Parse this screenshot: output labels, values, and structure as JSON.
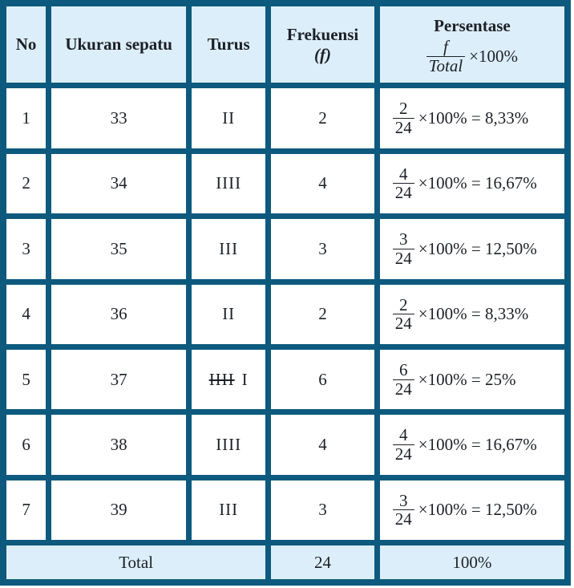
{
  "table": {
    "header": {
      "no": "No",
      "ukuran_sepatu": "Ukuran sepatu",
      "turus": "Turus",
      "frekuensi": "Frekuensi",
      "frekuensi_paren_open": "(",
      "frekuensi_symbol": "f",
      "frekuensi_paren_close": ")",
      "persentase": "Persentase",
      "persentase_frac_num": "f",
      "persentase_frac_den": "Total",
      "persentase_multiplier": "×100%"
    },
    "rows": [
      {
        "no": "1",
        "ukuran_sepatu": "33",
        "turus_struck": "",
        "turus": "II",
        "frekuensi": "2",
        "frac_num": "2",
        "frac_den": "24",
        "result": "×100% = 8,33%"
      },
      {
        "no": "2",
        "ukuran_sepatu": "34",
        "turus_struck": "",
        "turus": "IIII",
        "frekuensi": "4",
        "frac_num": "4",
        "frac_den": "24",
        "result": "×100% = 16,67%"
      },
      {
        "no": "3",
        "ukuran_sepatu": "35",
        "turus_struck": "",
        "turus": "III",
        "frekuensi": "3",
        "frac_num": "3",
        "frac_den": "24",
        "result": "×100% = 12,50%"
      },
      {
        "no": "4",
        "ukuran_sepatu": "36",
        "turus_struck": "",
        "turus": "II",
        "frekuensi": "2",
        "frac_num": "2",
        "frac_den": "24",
        "result": "×100% = 8,33%"
      },
      {
        "no": "5",
        "ukuran_sepatu": "37",
        "turus_struck": "IIII",
        "turus": "I",
        "frekuensi": "6",
        "frac_num": "6",
        "frac_den": "24",
        "result": "×100% = 25%"
      },
      {
        "no": "6",
        "ukuran_sepatu": "38",
        "turus_struck": "",
        "turus": "IIII",
        "frekuensi": "4",
        "frac_num": "4",
        "frac_den": "24",
        "result": "×100% = 16,67%"
      },
      {
        "no": "7",
        "ukuran_sepatu": "39",
        "turus_struck": "",
        "turus": "III",
        "frekuensi": "3",
        "frac_num": "3",
        "frac_den": "24",
        "result": "×100% = 12,50%"
      }
    ],
    "total": {
      "label": "Total",
      "frekuensi": "24",
      "persentase": "100%"
    }
  },
  "colors": {
    "border": "#0d5a7e",
    "header_bg": "#dceefa",
    "row_bg": "#ffffff",
    "text": "#1c2026"
  }
}
